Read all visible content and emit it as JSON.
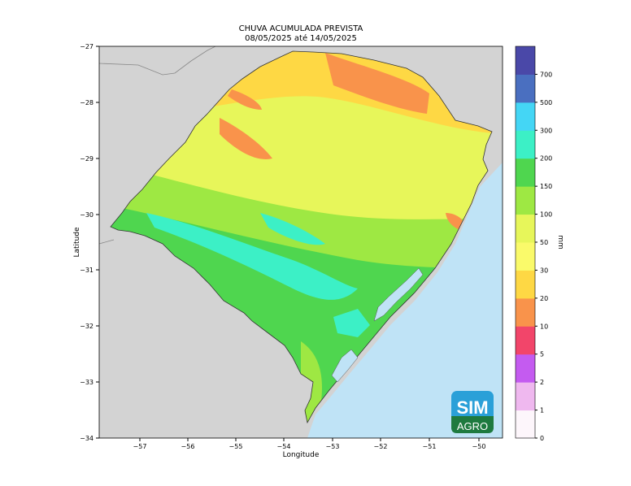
{
  "title": "CHUVA ACUMULADA PREVISTA",
  "subtitle": "08/05/2025 até 14/05/2025",
  "xlabel": "Longitude",
  "ylabel": "Latitude",
  "xticks": [
    "−57",
    "−56",
    "−55",
    "−54",
    "−53",
    "−52",
    "−51",
    "−50"
  ],
  "yticks": [
    "−27",
    "−28",
    "−29",
    "−30",
    "−31",
    "−32",
    "−33",
    "−34"
  ],
  "colorbar": {
    "unit": "mm",
    "levels": [
      "0",
      "1",
      "2",
      "5",
      "10",
      "20",
      "30",
      "50",
      "100",
      "150",
      "200",
      "300",
      "500",
      "700"
    ],
    "colors": [
      "#fdf6fb",
      "#efb8ef",
      "#c45bf0",
      "#f2456a",
      "#f9934b",
      "#fed844",
      "#fafa6a",
      "#e7f65a",
      "#9ee843",
      "#4fd64f",
      "#3cf0c6",
      "#44d6f5",
      "#4a6fc0",
      "#4a48a8"
    ]
  },
  "logo": {
    "line1": "SIM",
    "line2": "AGRO"
  },
  "map": {
    "xrange": [
      -57.8,
      -49.5
    ],
    "yrange": [
      -34,
      -27
    ],
    "land_color": "#d3d3d3",
    "ocean_color": "#bfe3f6"
  }
}
